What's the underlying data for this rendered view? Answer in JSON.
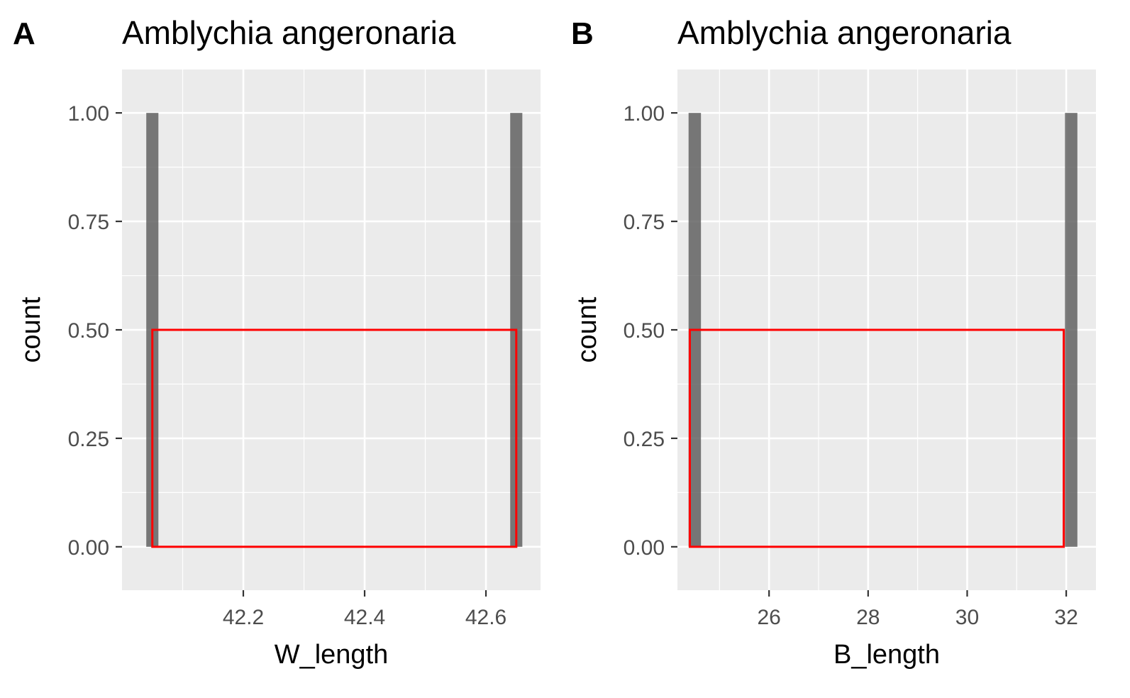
{
  "chart_data": [
    {
      "type": "bar",
      "panel_label": "A",
      "title": "Amblychia angeronaria",
      "xlabel": "W_length",
      "ylabel": "count",
      "xlim": [
        42.0,
        42.69
      ],
      "ylim": [
        -0.1,
        1.1
      ],
      "x_ticks": [
        {
          "value": 42.2,
          "label": "42.2"
        },
        {
          "value": 42.4,
          "label": "42.4"
        },
        {
          "value": 42.6,
          "label": "42.6"
        }
      ],
      "x_minor_ticks": [
        42.1,
        42.3,
        42.5
      ],
      "y_ticks": [
        {
          "value": 0.0,
          "label": "0.00"
        },
        {
          "value": 0.25,
          "label": "0.25"
        },
        {
          "value": 0.5,
          "label": "0.50"
        },
        {
          "value": 0.75,
          "label": "0.75"
        },
        {
          "value": 1.0,
          "label": "1.00"
        }
      ],
      "y_minor_ticks": [
        0.125,
        0.375,
        0.625,
        0.875
      ],
      "bars": [
        {
          "x": 42.05,
          "value": 1
        },
        {
          "x": 42.65,
          "value": 1
        }
      ],
      "bar_width": 0.02,
      "rect": {
        "xmin": 42.05,
        "xmax": 42.65,
        "ymin": 0,
        "ymax": 0.5
      },
      "colors": {
        "panel": "#ebebeb",
        "grid": "#ffffff",
        "bar": "#595959",
        "rect": "#ff0000",
        "tick": "#333333"
      }
    },
    {
      "type": "bar",
      "panel_label": "B",
      "title": "Amblychia angeronaria",
      "xlabel": "B_length",
      "ylabel": "count",
      "xlim": [
        24.15,
        32.6
      ],
      "ylim": [
        -0.1,
        1.1
      ],
      "x_ticks": [
        {
          "value": 26,
          "label": "26"
        },
        {
          "value": 28,
          "label": "28"
        },
        {
          "value": 30,
          "label": "30"
        },
        {
          "value": 32,
          "label": "32"
        }
      ],
      "x_minor_ticks": [
        25,
        27,
        29,
        31
      ],
      "y_ticks": [
        {
          "value": 0.0,
          "label": "0.00"
        },
        {
          "value": 0.25,
          "label": "0.25"
        },
        {
          "value": 0.5,
          "label": "0.50"
        },
        {
          "value": 0.75,
          "label": "0.75"
        },
        {
          "value": 1.0,
          "label": "1.00"
        }
      ],
      "y_minor_ticks": [
        0.125,
        0.375,
        0.625,
        0.875
      ],
      "bars": [
        {
          "x": 24.5,
          "value": 1
        },
        {
          "x": 32.1,
          "value": 1
        }
      ],
      "bar_width": 0.25,
      "rect": {
        "xmin": 24.4,
        "xmax": 31.95,
        "ymin": 0,
        "ymax": 0.5
      },
      "colors": {
        "panel": "#ebebeb",
        "grid": "#ffffff",
        "bar": "#595959",
        "rect": "#ff0000",
        "tick": "#333333"
      }
    }
  ]
}
